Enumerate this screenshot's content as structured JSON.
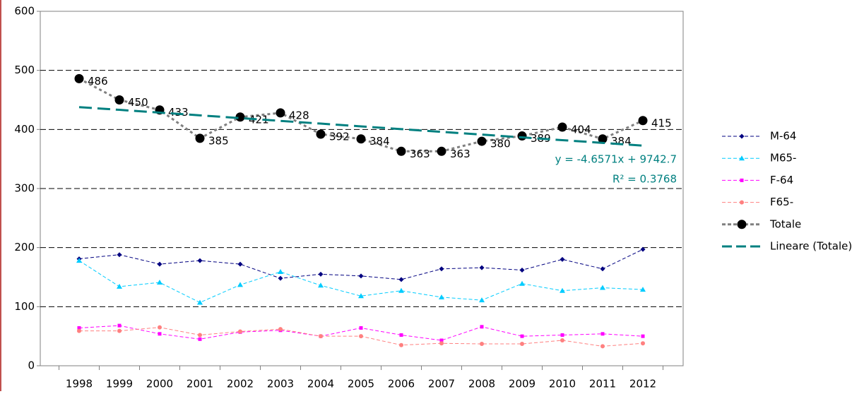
{
  "chart_data": {
    "type": "line",
    "categories": [
      "1998",
      "1999",
      "2000",
      "2001",
      "2002",
      "2003",
      "2004",
      "2005",
      "2006",
      "2007",
      "2008",
      "2009",
      "2010",
      "2011",
      "2012"
    ],
    "ylim": [
      0,
      600
    ],
    "yticks": [
      0,
      100,
      200,
      300,
      400,
      500,
      600
    ],
    "grid": true,
    "legend": "right",
    "series": [
      {
        "name": "M-64",
        "color": "#000080",
        "marker": "diamond",
        "values": [
          181,
          188,
          172,
          178,
          172,
          148,
          155,
          152,
          146,
          164,
          166,
          162,
          180,
          164,
          197
        ]
      },
      {
        "name": "M65-",
        "color": "#00ccff",
        "marker": "triangle",
        "values": [
          178,
          134,
          141,
          107,
          137,
          159,
          136,
          118,
          127,
          116,
          111,
          139,
          127,
          132,
          129
        ]
      },
      {
        "name": "F-64",
        "color": "#ff00ff",
        "marker": "square",
        "values": [
          64,
          68,
          54,
          45,
          57,
          60,
          50,
          64,
          52,
          43,
          66,
          50,
          52,
          54,
          50
        ]
      },
      {
        "name": "F65-",
        "color": "#ff8080",
        "marker": "circle",
        "values": [
          59,
          59,
          65,
          52,
          58,
          62,
          50,
          50,
          35,
          38,
          37,
          37,
          43,
          33,
          38
        ]
      },
      {
        "name": "Totale",
        "color": "#808080",
        "marker": "bigcircle",
        "data_labels": true,
        "values": [
          486,
          450,
          433,
          385,
          421,
          428,
          392,
          384,
          363,
          363,
          380,
          389,
          404,
          384,
          415
        ]
      },
      {
        "name": "Lineare (Totale)",
        "color": "#008080",
        "marker": "trend",
        "values": [
          437.8,
          433.2,
          428.5,
          423.9,
          419.2,
          414.5,
          409.9,
          405.2,
          400.6,
          395.9,
          391.3,
          386.6,
          381.9,
          377.3,
          372.6
        ]
      }
    ],
    "trend_equation": "y = -4.6571x + 9742.7",
    "trend_r2": "R² = 0.3768"
  }
}
